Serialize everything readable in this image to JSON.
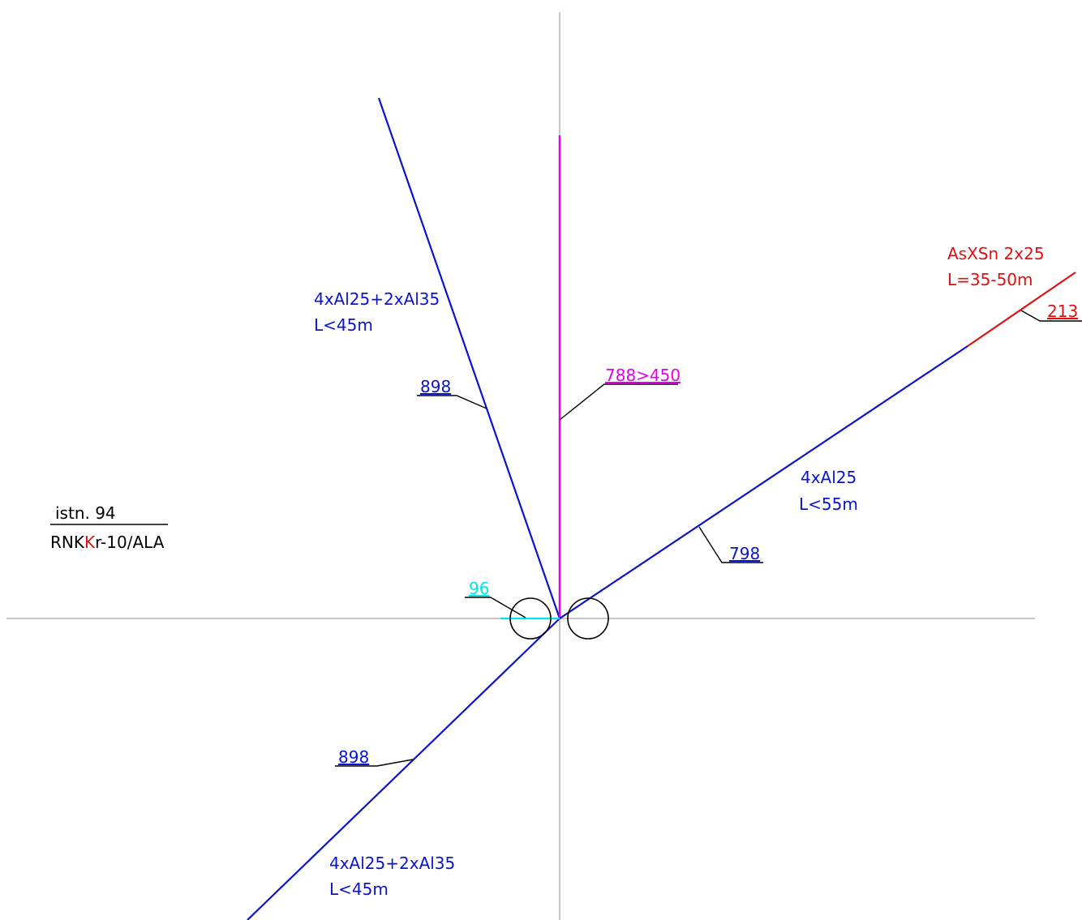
{
  "colors": {
    "background": "#ffffff",
    "axis": "#b4b4b4",
    "cable_main": "#0a14cc",
    "cable_vertical": "#e600e6",
    "cable_red": "#e01010",
    "cable_cyan": "#00e6e6",
    "leader": "#000000",
    "text_black": "#000000"
  },
  "station": {
    "name": "istn. 94",
    "type_prefix": "RNK",
    "type_highlight": "K",
    "type_suffix": "r-10/ALA"
  },
  "labels": {
    "nw_spec": "4xAl25+2xAl35",
    "nw_length": "L<45m",
    "nw_number": "898",
    "vertical_number": "788>450",
    "ne_spec": "4xAl25",
    "ne_length": "L<55m",
    "ne_number": "798",
    "ne_ext_spec": "AsXSn 2x25",
    "ne_ext_length": "L=35-50m",
    "ne_ext_number": "213",
    "sw_spec": "4xAl25+2xAl35",
    "sw_length": "L<45m",
    "sw_number": "898",
    "small_number": "96"
  }
}
